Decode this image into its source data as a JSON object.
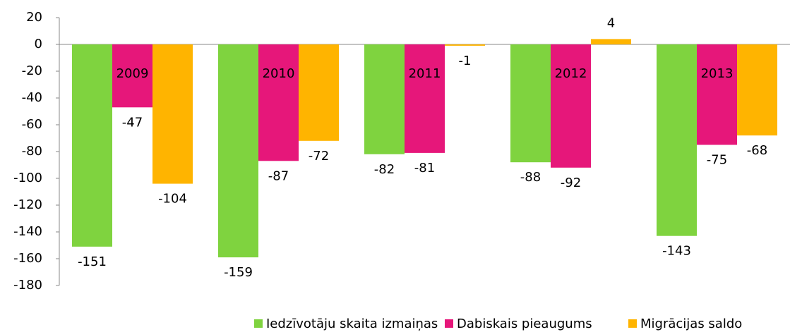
{
  "chart_data": {
    "type": "bar",
    "categories": [
      "2009",
      "2010",
      "2011",
      "2012",
      "2013"
    ],
    "series": [
      {
        "name": "Iedzīvotāju skaita izmaiņas",
        "color": "#7fd33f",
        "values": [
          -151,
          -159,
          -82,
          -88,
          -143
        ]
      },
      {
        "name": "Dabiskais pieaugums",
        "color": "#e6177a",
        "values": [
          -47,
          -87,
          -81,
          -92,
          -75
        ]
      },
      {
        "name": "Migrācijas saldo",
        "color": "#ffb400",
        "values": [
          -104,
          -72,
          -1,
          4,
          -68
        ]
      }
    ],
    "ylim": [
      -180,
      20
    ],
    "yticks": [
      20,
      0,
      -20,
      -40,
      -60,
      -80,
      -100,
      -120,
      -140,
      -160,
      -180
    ],
    "legend": "bottom"
  }
}
